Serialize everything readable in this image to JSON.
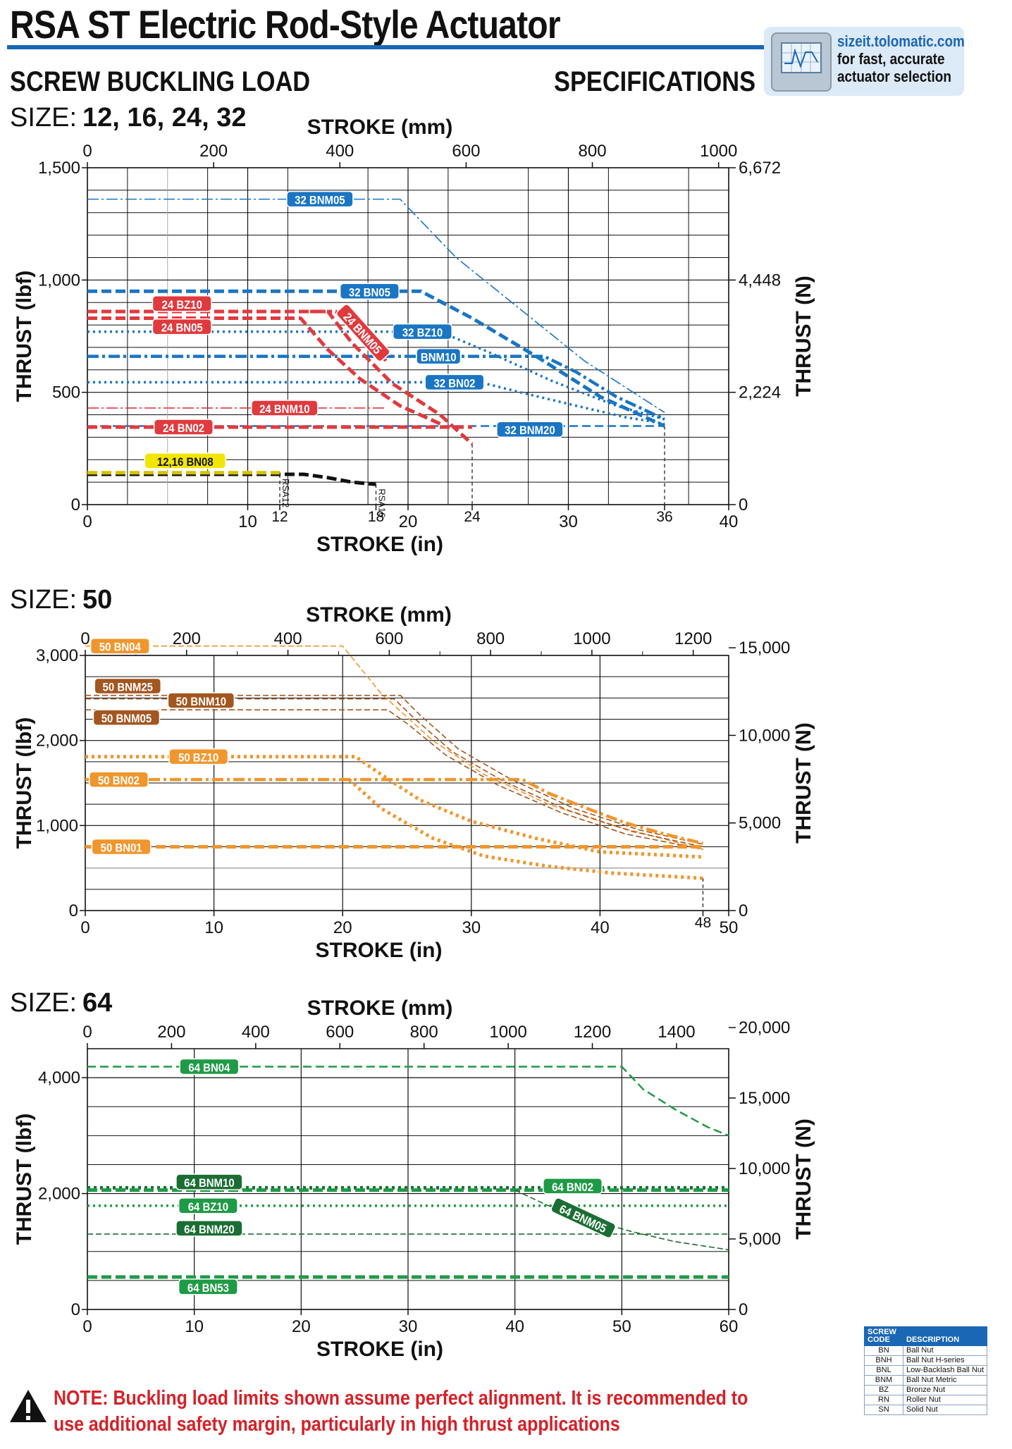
{
  "header": {
    "title": "RSA ST Electric Rod-Style Actuator",
    "left_heading": "SCREW BUCKLING LOAD",
    "right_heading": "SPECIFICATIONS",
    "accent_color": "#1a67b5"
  },
  "sizeit": {
    "icon": "chart-monitor-icon",
    "url": "sizeit.tolomatic.com",
    "line2": "for fast, accurate",
    "line3": "actuator selection"
  },
  "sections": [
    {
      "label": "SIZE:",
      "value": "12, 16, 24, 32"
    },
    {
      "label": "SIZE:",
      "value": "50"
    },
    {
      "label": "SIZE:",
      "value": "64"
    }
  ],
  "chart_data": [
    {
      "type": "line",
      "size": "12, 16, 24, 32",
      "xlabel": "STROKE (in)",
      "x2label": "STROKE (mm)",
      "ylabel": "THRUST (lbf)",
      "y2label": "THRUST (N)",
      "xlim": [
        0,
        40
      ],
      "ylim": [
        0,
        1500
      ],
      "x_ticks": [
        0,
        10,
        20,
        30,
        40
      ],
      "x_extra_ticks": [
        12,
        18,
        24,
        36
      ],
      "x2_ticks": [
        0,
        200,
        400,
        600,
        800,
        1000
      ],
      "x2_tick_labels": [
        "0",
        "200",
        "400",
        "600",
        "800",
        "1000"
      ],
      "y_ticks": [
        0,
        500,
        1000,
        1500
      ],
      "y_tick_labels": [
        "0",
        "500",
        "1,000",
        "1,500"
      ],
      "y2_tick_labels": [
        "0",
        "2,224",
        "4,448",
        "6,672"
      ],
      "stroke_markers": [
        {
          "x": 12,
          "ymax": 135,
          "label": "RSA12"
        },
        {
          "x": 18,
          "ymax": 90,
          "label": "RSA16"
        },
        {
          "x": 24,
          "ymax": 270
        },
        {
          "x": 36,
          "ymax": 350
        }
      ],
      "series": [
        {
          "name": "32 BNM05",
          "color": "#1a75c4",
          "style": "dashdot-thin",
          "x": [
            0,
            19.5,
            23,
            27,
            31,
            36
          ],
          "y": [
            1360,
            1360,
            1100,
            870,
            640,
            410
          ]
        },
        {
          "name": "32 BN05",
          "color": "#1a75c4",
          "style": "dash-thick",
          "x": [
            0,
            20.8,
            24,
            28,
            32,
            36
          ],
          "y": [
            950,
            950,
            830,
            660,
            480,
            350
          ]
        },
        {
          "name": "32 BZ10",
          "color": "#1a75c4",
          "style": "dot",
          "x": [
            0,
            22,
            25,
            29,
            33,
            36
          ],
          "y": [
            770,
            770,
            680,
            550,
            440,
            380
          ]
        },
        {
          "name": "BNM10",
          "color": "#1a75c4",
          "style": "dashdot-thick",
          "x": [
            0,
            28.5,
            30.5,
            33,
            36
          ],
          "y": [
            660,
            660,
            590,
            480,
            380
          ]
        },
        {
          "name": "32 BN02",
          "color": "#1a75c4",
          "style": "dot",
          "x": [
            0,
            24.5,
            27,
            30.5,
            33.5,
            36
          ],
          "y": [
            545,
            545,
            500,
            440,
            390,
            360
          ]
        },
        {
          "name": "32 BNM20",
          "color": "#1a75c4",
          "style": "dash",
          "x": [
            0,
            36
          ],
          "y": [
            350,
            350
          ]
        },
        {
          "name": "24 BZ10",
          "color": "#e03a3e",
          "style": "dash-thick",
          "x": [
            0,
            15,
            16.5,
            19,
            22,
            24
          ],
          "y": [
            860,
            860,
            720,
            540,
            400,
            270
          ]
        },
        {
          "name": "24 BNM05",
          "color": "#e03a3e",
          "style": "dot-thick",
          "x": [
            13.5,
            15.5,
            18,
            18.6
          ],
          "y": [
            860,
            860,
            720,
            640
          ]
        },
        {
          "name": "24 BN05",
          "color": "#e03a3e",
          "style": "dash-thick",
          "x": [
            0,
            13.3,
            15,
            17,
            19.5,
            22
          ],
          "y": [
            830,
            830,
            690,
            560,
            440,
            360
          ]
        },
        {
          "name": "24 BNM10",
          "color": "#e03a3e",
          "style": "dashdot-thin",
          "x": [
            0,
            18.6
          ],
          "y": [
            430,
            430
          ]
        },
        {
          "name": "24 BN02",
          "color": "#e03a3e",
          "style": "dash-thick",
          "x": [
            0,
            24
          ],
          "y": [
            345,
            345
          ]
        },
        {
          "name": "12,16 BN08",
          "color": "#111111",
          "style": "dash-thick",
          "x": [
            0,
            12,
            13.5,
            15,
            16.5,
            18
          ],
          "y": [
            135,
            135,
            135,
            120,
            100,
            90
          ]
        },
        {
          "name": "12,16 BN08",
          "color": "#d4c400",
          "style": "dash-thick",
          "x": [
            0,
            12
          ],
          "y": [
            142,
            142
          ]
        }
      ],
      "labels": [
        {
          "text": "32 BNM05",
          "x": 14.5,
          "y": 1360,
          "color": "#1a75c4",
          "rotate": 0
        },
        {
          "text": "32 BN05",
          "x": 17.6,
          "y": 950,
          "color": "#1a75c4",
          "rotate": 0
        },
        {
          "text": "32 BZ10",
          "x": 20.9,
          "y": 770,
          "color": "#1a75c4",
          "rotate": 0
        },
        {
          "text": "BNM10",
          "x": 21.9,
          "y": 660,
          "color": "#1a75c4",
          "rotate": 0
        },
        {
          "text": "32 BN02",
          "x": 22.9,
          "y": 545,
          "color": "#1a75c4",
          "rotate": 0
        },
        {
          "text": "32 BNM20",
          "x": 27.6,
          "y": 335,
          "color": "#1a75c4",
          "rotate": 0
        },
        {
          "text": "24 BZ10",
          "x": 5.9,
          "y": 895,
          "color": "#e03a3e",
          "rotate": 0
        },
        {
          "text": "24 BNM05",
          "x": 17.2,
          "y": 765,
          "color": "#e03a3e",
          "rotate": 48
        },
        {
          "text": "24 BN05",
          "x": 5.9,
          "y": 792,
          "color": "#e03a3e",
          "rotate": 0
        },
        {
          "text": "24 BNM10",
          "x": 12.3,
          "y": 430,
          "color": "#e03a3e",
          "rotate": 0
        },
        {
          "text": "24 BN02",
          "x": 6.0,
          "y": 345,
          "color": "#e03a3e",
          "rotate": 0
        },
        {
          "text": "12,16 BN08",
          "x": 6.1,
          "y": 195,
          "color": "#111111",
          "fill": "#f2e600",
          "rotate": 0
        }
      ]
    },
    {
      "type": "line",
      "size": "50",
      "xlabel": "STROKE (in)",
      "x2label": "STROKE (mm)",
      "ylabel": "THRUST (lbf)",
      "y2label": "THRUST (N)",
      "xlim": [
        0,
        50
      ],
      "ylim": [
        0,
        3000
      ],
      "x_ticks": [
        0,
        10,
        20,
        30,
        40,
        50
      ],
      "x_extra_ticks": [
        48
      ],
      "x2_ticks": [
        0,
        200,
        400,
        600,
        800,
        1000,
        1200
      ],
      "x2_tick_labels": [
        "0",
        "200",
        "400",
        "600",
        "800",
        "1000",
        "1200"
      ],
      "y_ticks": [
        0,
        1000,
        2000,
        3000
      ],
      "y_tick_labels": [
        "0",
        "1,000",
        "2,000",
        "3,000"
      ],
      "y2_tick_labels": [
        "0",
        "5,000",
        "10,000",
        "15,000"
      ],
      "stroke_markers": [
        {
          "x": 48,
          "ymax": 380
        }
      ],
      "series": [
        {
          "name": "50 BN04",
          "color": "#f0962d",
          "style": "dash-thin",
          "x": [
            0,
            20,
            23,
            27,
            31,
            36,
            41,
            48
          ],
          "y": [
            3110,
            3110,
            2550,
            2000,
            1600,
            1250,
            1000,
            720
          ]
        },
        {
          "name": "50 BNM25",
          "color": "#a3561f",
          "style": "dash-thin",
          "x": [
            0,
            24.5,
            26,
            29,
            33,
            38,
            43,
            48
          ],
          "y": [
            2530,
            2530,
            2300,
            1900,
            1550,
            1200,
            950,
            780
          ]
        },
        {
          "name": "50 BNM10",
          "color": "#a3561f",
          "style": "dash-thin",
          "x": [
            0,
            24,
            25.5,
            28.5,
            32.5,
            37.5,
            42.5,
            48
          ],
          "y": [
            2490,
            2490,
            2270,
            1870,
            1520,
            1180,
            930,
            750
          ]
        },
        {
          "name": "50 BNM05",
          "color": "#a3561f",
          "style": "dash-thin",
          "x": [
            0,
            23.5,
            25,
            28,
            32,
            37,
            42,
            48
          ],
          "y": [
            2360,
            2360,
            2200,
            1830,
            1480,
            1150,
            900,
            720
          ]
        },
        {
          "name": "50 BZ10",
          "color": "#f0962d",
          "style": "dot-thick",
          "x": [
            0,
            21,
            23,
            26,
            30,
            35,
            40,
            48
          ],
          "y": [
            1810,
            1810,
            1600,
            1300,
            1050,
            850,
            690,
            630
          ]
        },
        {
          "name": "50 BN02",
          "color": "#f0962d",
          "style": "dashdot-thick",
          "x": [
            0,
            34,
            36,
            39,
            42,
            45,
            48
          ],
          "y": [
            1540,
            1540,
            1380,
            1200,
            1030,
            900,
            790
          ]
        },
        {
          "name": "50 BN01",
          "color": "#f0962d",
          "style": "dash-thick",
          "x": [
            0,
            48
          ],
          "y": [
            750,
            750
          ]
        },
        {
          "name": "50 BN01 end",
          "color": "#f0962d",
          "style": "dot-thick",
          "x": [
            20.5,
            23,
            27,
            31,
            36,
            41,
            48
          ],
          "y": [
            1540,
            1200,
            850,
            640,
            520,
            440,
            380
          ]
        }
      ],
      "labels": [
        {
          "text": "50 BN04",
          "x": 2.7,
          "y": 3110,
          "color": "#f0962d",
          "rotate": 0
        },
        {
          "text": "50 BNM25",
          "x": 3.3,
          "y": 2640,
          "color": "#a3561f",
          "rotate": 0
        },
        {
          "text": "50 BNM10",
          "x": 9.0,
          "y": 2470,
          "color": "#a3561f",
          "rotate": 0
        },
        {
          "text": "50 BNM05",
          "x": 3.2,
          "y": 2270,
          "color": "#a3561f",
          "rotate": 0
        },
        {
          "text": "50 BZ10",
          "x": 8.8,
          "y": 1810,
          "color": "#f0962d",
          "rotate": 0
        },
        {
          "text": "50 BN02",
          "x": 2.6,
          "y": 1540,
          "color": "#f0962d",
          "rotate": 0
        },
        {
          "text": "50 BN01",
          "x": 2.8,
          "y": 750,
          "color": "#f0962d",
          "rotate": 0
        }
      ]
    },
    {
      "type": "line",
      "size": "64",
      "xlabel": "STROKE (in)",
      "x2label": "STROKE (mm)",
      "ylabel": "THRUST (lbf)",
      "y2label": "THRUST (N)",
      "xlim": [
        0,
        60
      ],
      "ylim": [
        0,
        4500
      ],
      "x_ticks": [
        0,
        10,
        20,
        30,
        40,
        50,
        60
      ],
      "x2_ticks": [
        0,
        200,
        400,
        600,
        800,
        1000,
        1200,
        1400
      ],
      "x2_tick_labels": [
        "0",
        "200",
        "400",
        "600",
        "800",
        "1000",
        "1200",
        "1400"
      ],
      "y_ticks": [
        0,
        2000,
        4000
      ],
      "y_tick_labels": [
        "0",
        "2,000",
        "4,000"
      ],
      "y2_tick_labels": [
        "0",
        "5,000",
        "10,000",
        "15,000",
        "20,000"
      ],
      "series": [
        {
          "name": "64 BN04",
          "color": "#1f9a46",
          "style": "dash",
          "x": [
            0,
            50,
            52,
            55,
            58,
            60
          ],
          "y": [
            4190,
            4190,
            3800,
            3450,
            3150,
            3000
          ]
        },
        {
          "name": "64 BNM10",
          "color": "#1b6e33",
          "style": "dot-thick",
          "x": [
            0,
            60
          ],
          "y": [
            2100,
            2100
          ]
        },
        {
          "name": "64 BN02",
          "color": "#1f9a46",
          "style": "dash-thick",
          "x": [
            0,
            60
          ],
          "y": [
            2060,
            2060
          ]
        },
        {
          "name": "64 BZ10",
          "color": "#1f9a46",
          "style": "dot",
          "x": [
            0,
            60
          ],
          "y": [
            1790,
            1790
          ]
        },
        {
          "name": "64 BNM20",
          "color": "#1b6e33",
          "style": "dash-thin",
          "x": [
            0,
            60
          ],
          "y": [
            1300,
            1300
          ]
        },
        {
          "name": "64 BNM05",
          "color": "#1b6e33",
          "style": "dash-thin",
          "x": [
            40,
            43,
            47,
            51,
            55,
            60
          ],
          "y": [
            2060,
            1800,
            1550,
            1340,
            1170,
            1030
          ]
        },
        {
          "name": "64 BN53",
          "color": "#1f9a46",
          "style": "dash-thick",
          "x": [
            0,
            60
          ],
          "y": [
            560,
            560
          ]
        }
      ],
      "labels": [
        {
          "text": "64 BN04",
          "x": 11.4,
          "y": 4190,
          "color": "#1f9a46",
          "rotate": 0
        },
        {
          "text": "64 BNM10",
          "x": 11.4,
          "y": 2200,
          "color": "#1b6e33",
          "rotate": 0
        },
        {
          "text": "64 BN02",
          "x": 45.4,
          "y": 2130,
          "color": "#1f9a46",
          "rotate": 0
        },
        {
          "text": "64 BZ10",
          "x": 11.3,
          "y": 1790,
          "color": "#1f9a46",
          "rotate": 0
        },
        {
          "text": "64 BNM20",
          "x": 11.4,
          "y": 1400,
          "color": "#1b6e33",
          "rotate": 0
        },
        {
          "text": "64 BNM05",
          "x": 46.4,
          "y": 1580,
          "color": "#1b6e33",
          "rotate": 25
        },
        {
          "text": "64 BN53",
          "x": 11.3,
          "y": 390,
          "color": "#1f9a46",
          "rotate": 0
        }
      ]
    }
  ],
  "screw_codes": {
    "header_code": "SCREW CODE",
    "header_desc": "DESCRIPTION",
    "rows": [
      {
        "code": "BN",
        "desc": "Ball Nut"
      },
      {
        "code": "BNH",
        "desc": "Ball Nut H-series"
      },
      {
        "code": "BNL",
        "desc": "Low-Backlash Ball Nut"
      },
      {
        "code": "BNM",
        "desc": "Ball Nut Metric"
      },
      {
        "code": "BZ",
        "desc": "Bronze Nut"
      },
      {
        "code": "RN",
        "desc": "Roller Nut"
      },
      {
        "code": "SN",
        "desc": "Solid Nut"
      }
    ]
  },
  "note": {
    "icon": "warning-triangle-icon",
    "text": "NOTE: Buckling load limits shown assume perfect alignment. It is recommended to use additional safety margin, particularly in high thrust applications",
    "color": "#d62027"
  }
}
